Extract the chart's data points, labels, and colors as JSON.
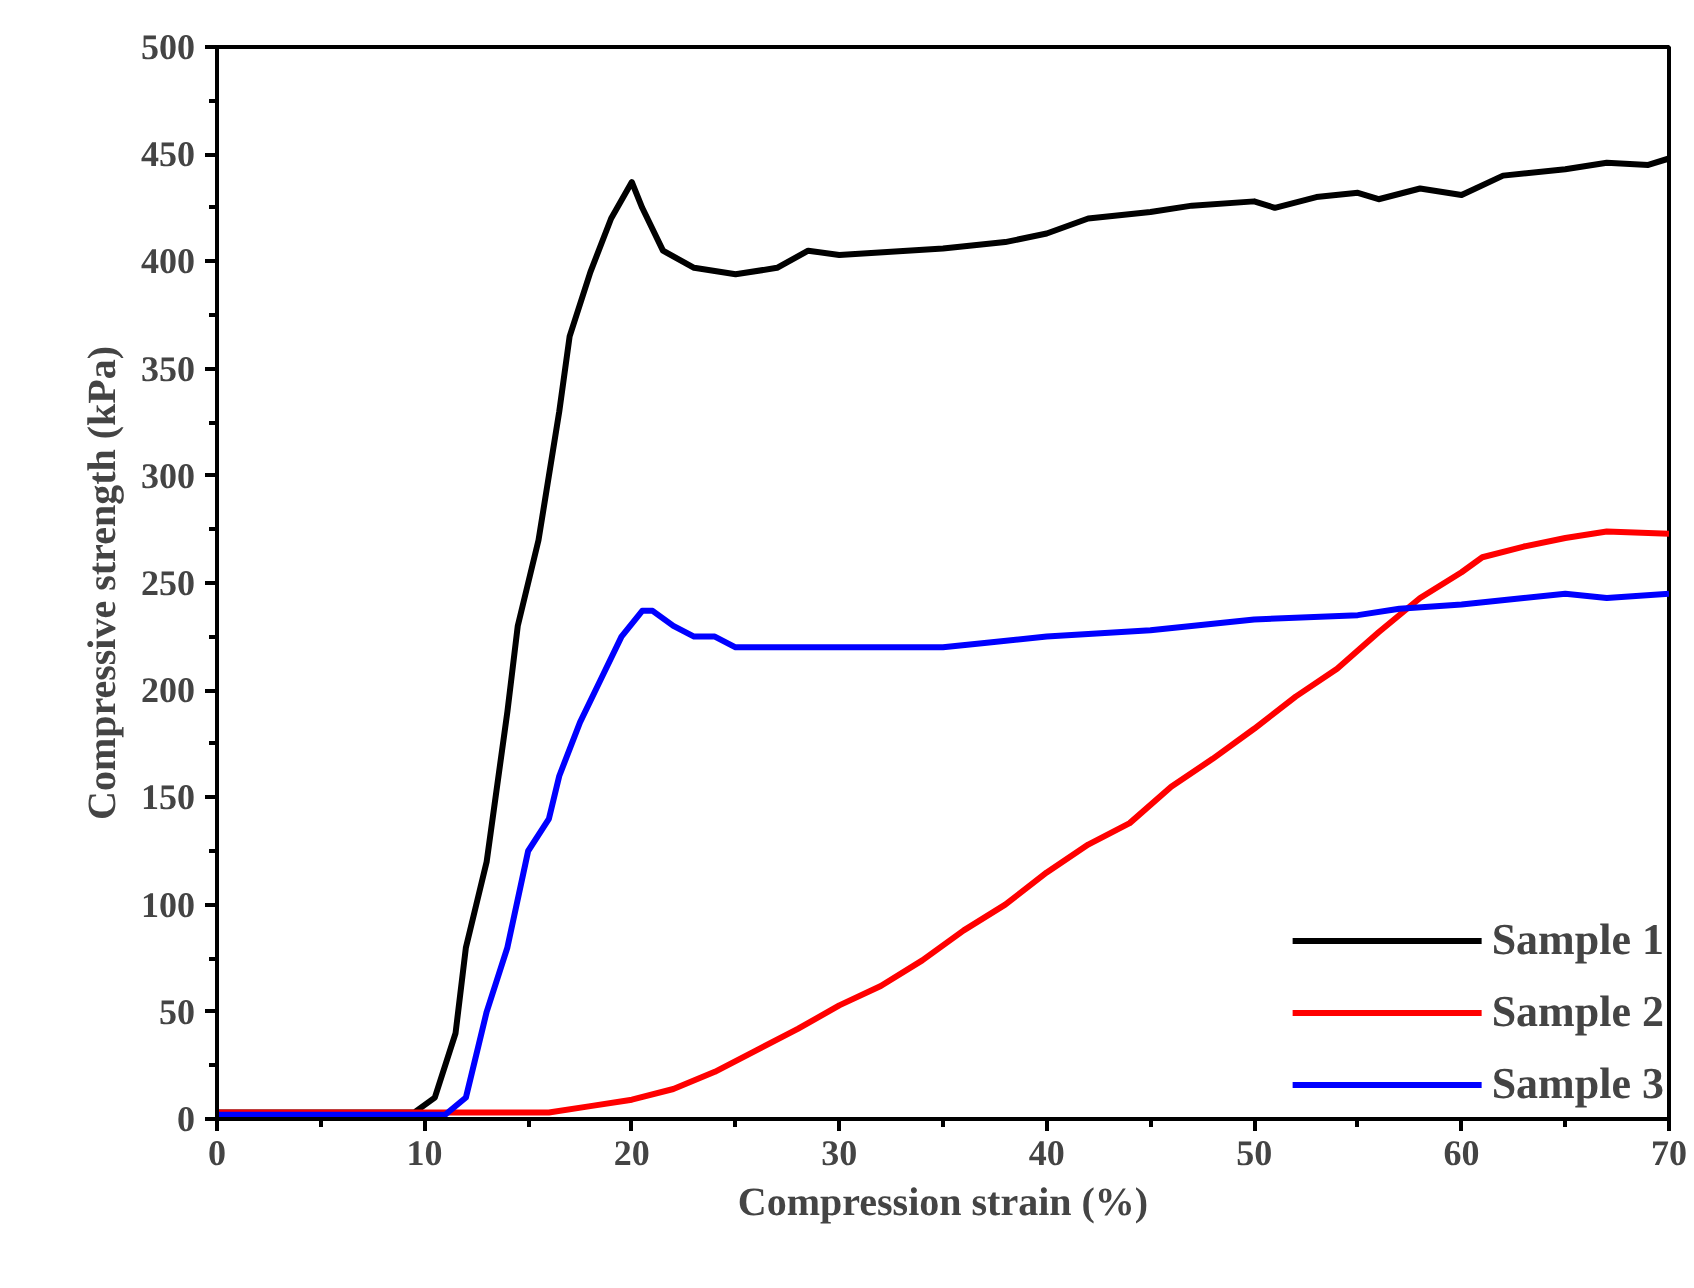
{
  "chart_data": {
    "type": "line",
    "xlabel": "Compression strain (%)",
    "ylabel": "Compressive strength (kPa)",
    "xlim": [
      0,
      70
    ],
    "ylim": [
      0,
      500
    ],
    "xticks": [
      0,
      10,
      20,
      30,
      40,
      50,
      60,
      70
    ],
    "yticks": [
      0,
      50,
      100,
      150,
      200,
      250,
      300,
      350,
      400,
      450,
      500
    ],
    "grid": false,
    "legend": "bottom right",
    "marker": "none",
    "line_style": "solid",
    "series": [
      {
        "name": "Sample 1",
        "color": "#000000",
        "x": [
          0,
          9.5,
          10.5,
          11.5,
          12,
          12.5,
          13,
          14,
          14.5,
          15.5,
          16,
          16.5,
          17,
          18,
          19,
          20,
          20.5,
          21.5,
          23,
          25,
          27,
          28.5,
          30,
          35,
          38,
          40,
          42,
          45,
          47,
          50,
          51,
          53,
          55,
          56,
          58,
          60,
          62,
          65,
          67,
          69,
          70
        ],
        "values": [
          3,
          3,
          10,
          40,
          80,
          100,
          120,
          190,
          230,
          270,
          300,
          330,
          365,
          395,
          420,
          437,
          425,
          405,
          397,
          394,
          397,
          405,
          403,
          406,
          409,
          413,
          420,
          423,
          426,
          428,
          425,
          430,
          432,
          429,
          434,
          431,
          440,
          443,
          446,
          445,
          448
        ]
      },
      {
        "name": "Sample 2",
        "color": "#ff0000",
        "x": [
          0,
          16,
          18,
          20,
          22,
          24,
          26,
          28,
          30,
          32,
          34,
          36,
          38,
          40,
          42,
          44,
          46,
          48,
          50,
          52,
          54,
          56,
          58,
          60,
          61,
          63,
          65,
          67,
          70
        ],
        "values": [
          3,
          3,
          6,
          9,
          14,
          22,
          32,
          42,
          53,
          62,
          74,
          88,
          100,
          115,
          128,
          138,
          155,
          168,
          182,
          197,
          210,
          227,
          243,
          255,
          262,
          267,
          271,
          274,
          273
        ]
      },
      {
        "name": "Sample 3",
        "color": "#0000ff",
        "x": [
          0,
          11,
          12,
          12.5,
          13,
          14,
          15,
          16,
          16.5,
          17.5,
          18.5,
          19.5,
          20.5,
          21,
          22,
          23,
          24,
          25,
          30,
          35,
          37,
          40,
          45,
          50,
          55,
          57,
          60,
          63,
          65,
          67,
          70
        ],
        "values": [
          2,
          2,
          10,
          30,
          50,
          80,
          125,
          140,
          160,
          185,
          205,
          225,
          237,
          237,
          230,
          225,
          225,
          220,
          220,
          220,
          222,
          225,
          228,
          233,
          235,
          238,
          240,
          243,
          245,
          243,
          245
        ]
      }
    ]
  }
}
